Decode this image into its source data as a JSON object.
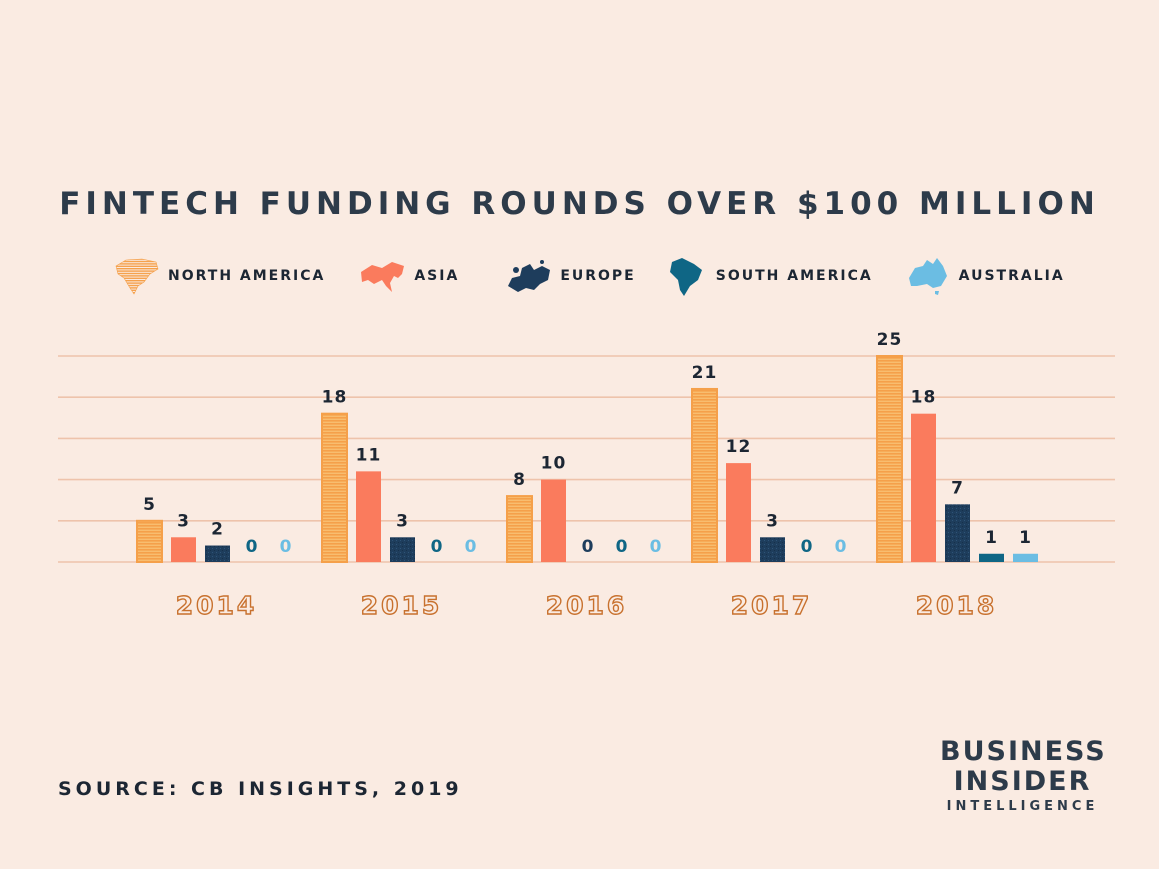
{
  "title": "FINTECH FUNDING ROUNDS OVER $100 MILLION",
  "legend": [
    {
      "label": "NORTH AMERICA",
      "icon": "north-america-icon",
      "color": "#f5a04a"
    },
    {
      "label": "ASIA",
      "icon": "asia-icon",
      "color": "#fa7b5d"
    },
    {
      "label": "EUROPE",
      "icon": "europe-icon",
      "color": "#1e3d5c"
    },
    {
      "label": "SOUTH AMERICA",
      "icon": "south-america-icon",
      "color": "#0f6685"
    },
    {
      "label": "AUSTRALIA",
      "icon": "australia-icon",
      "color": "#6bbde3"
    }
  ],
  "chart_data": {
    "type": "bar",
    "categories": [
      "2014",
      "2015",
      "2016",
      "2017",
      "2018"
    ],
    "series": [
      {
        "name": "NORTH AMERICA",
        "color": "#f5a04a",
        "values": [
          5,
          18,
          8,
          21,
          25
        ]
      },
      {
        "name": "ASIA",
        "color": "#fa7b5d",
        "values": [
          3,
          11,
          10,
          12,
          18
        ]
      },
      {
        "name": "EUROPE",
        "color": "#1e3d5c",
        "values": [
          2,
          3,
          0,
          3,
          7
        ]
      },
      {
        "name": "SOUTH AMERICA",
        "color": "#0f6685",
        "values": [
          0,
          0,
          0,
          0,
          1
        ]
      },
      {
        "name": "AUSTRALIA",
        "color": "#6bbde3",
        "values": [
          0,
          0,
          0,
          0,
          1
        ]
      }
    ],
    "ylim": [
      0,
      25
    ],
    "grid": true,
    "legend_position": "top",
    "category_label_color": "#c8712e",
    "gridline_color": "#eec3ab"
  },
  "source": "SOURCE: CB INSIGHTS, 2019",
  "brand": {
    "line1": "BUSINESS",
    "line2": "INSIDER",
    "line3": "INTELLIGENCE"
  }
}
